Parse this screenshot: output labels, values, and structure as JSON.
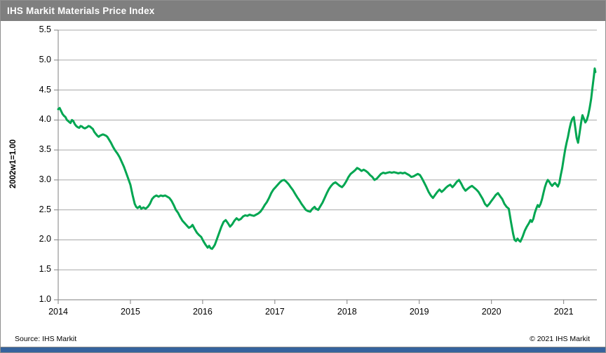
{
  "header": {
    "title": "IHS Markit Materials Price Index",
    "bar_color": "#7f7f7f"
  },
  "footer": {
    "source": "Source: IHS Markit",
    "copyright": "© 2021 IHS Markit",
    "bar_color": "#35639d"
  },
  "chart_data": {
    "type": "line",
    "title": "IHS Markit Materials Price Index",
    "ylabel": "2002w1=1.00",
    "xlabel": "",
    "ylim": [
      1.0,
      5.5
    ],
    "xlim": [
      2014.0,
      2021.46
    ],
    "y_ticks": [
      1.0,
      1.5,
      2.0,
      2.5,
      3.0,
      3.5,
      4.0,
      4.5,
      5.0,
      5.5
    ],
    "x_ticks": [
      2014,
      2015,
      2016,
      2017,
      2018,
      2019,
      2020,
      2021
    ],
    "grid": "horizontal",
    "legend_position": "none",
    "line_color": "#00a651",
    "grid_color": "#a8a8a8",
    "axis_color": "#7f7f7f",
    "series": [
      {
        "name": "Materials Price Index (2002w1=1.00)",
        "points": [
          [
            2014.0,
            4.18
          ],
          [
            2014.02,
            4.2
          ],
          [
            2014.04,
            4.15
          ],
          [
            2014.06,
            4.1
          ],
          [
            2014.08,
            4.07
          ],
          [
            2014.1,
            4.05
          ],
          [
            2014.12,
            4.0
          ],
          [
            2014.15,
            3.97
          ],
          [
            2014.17,
            3.95
          ],
          [
            2014.19,
            4.0
          ],
          [
            2014.21,
            3.98
          ],
          [
            2014.23,
            3.93
          ],
          [
            2014.25,
            3.9
          ],
          [
            2014.27,
            3.88
          ],
          [
            2014.29,
            3.87
          ],
          [
            2014.31,
            3.9
          ],
          [
            2014.33,
            3.89
          ],
          [
            2014.35,
            3.87
          ],
          [
            2014.37,
            3.86
          ],
          [
            2014.4,
            3.88
          ],
          [
            2014.42,
            3.9
          ],
          [
            2014.44,
            3.89
          ],
          [
            2014.46,
            3.87
          ],
          [
            2014.48,
            3.85
          ],
          [
            2014.5,
            3.8
          ],
          [
            2014.52,
            3.77
          ],
          [
            2014.54,
            3.74
          ],
          [
            2014.56,
            3.72
          ],
          [
            2014.58,
            3.74
          ],
          [
            2014.6,
            3.75
          ],
          [
            2014.62,
            3.76
          ],
          [
            2014.64,
            3.75
          ],
          [
            2014.66,
            3.74
          ],
          [
            2014.68,
            3.72
          ],
          [
            2014.7,
            3.68
          ],
          [
            2014.73,
            3.62
          ],
          [
            2014.76,
            3.55
          ],
          [
            2014.79,
            3.49
          ],
          [
            2014.82,
            3.44
          ],
          [
            2014.85,
            3.38
          ],
          [
            2014.88,
            3.3
          ],
          [
            2014.91,
            3.22
          ],
          [
            2014.94,
            3.12
          ],
          [
            2014.97,
            3.02
          ],
          [
            2015.0,
            2.92
          ],
          [
            2015.03,
            2.75
          ],
          [
            2015.06,
            2.6
          ],
          [
            2015.08,
            2.55
          ],
          [
            2015.1,
            2.53
          ],
          [
            2015.13,
            2.56
          ],
          [
            2015.15,
            2.52
          ],
          [
            2015.18,
            2.54
          ],
          [
            2015.21,
            2.52
          ],
          [
            2015.24,
            2.55
          ],
          [
            2015.27,
            2.6
          ],
          [
            2015.3,
            2.68
          ],
          [
            2015.33,
            2.72
          ],
          [
            2015.36,
            2.74
          ],
          [
            2015.39,
            2.72
          ],
          [
            2015.42,
            2.74
          ],
          [
            2015.45,
            2.73
          ],
          [
            2015.48,
            2.74
          ],
          [
            2015.51,
            2.72
          ],
          [
            2015.54,
            2.7
          ],
          [
            2015.57,
            2.65
          ],
          [
            2015.6,
            2.58
          ],
          [
            2015.63,
            2.5
          ],
          [
            2015.66,
            2.45
          ],
          [
            2015.69,
            2.38
          ],
          [
            2015.72,
            2.32
          ],
          [
            2015.75,
            2.28
          ],
          [
            2015.78,
            2.24
          ],
          [
            2015.81,
            2.2
          ],
          [
            2015.84,
            2.22
          ],
          [
            2015.86,
            2.25
          ],
          [
            2015.89,
            2.18
          ],
          [
            2015.92,
            2.12
          ],
          [
            2015.95,
            2.08
          ],
          [
            2015.98,
            2.05
          ],
          [
            2016.01,
            1.98
          ],
          [
            2016.04,
            1.92
          ],
          [
            2016.07,
            1.87
          ],
          [
            2016.09,
            1.9
          ],
          [
            2016.11,
            1.86
          ],
          [
            2016.13,
            1.85
          ],
          [
            2016.15,
            1.88
          ],
          [
            2016.17,
            1.92
          ],
          [
            2016.2,
            2.02
          ],
          [
            2016.23,
            2.12
          ],
          [
            2016.26,
            2.22
          ],
          [
            2016.29,
            2.3
          ],
          [
            2016.32,
            2.33
          ],
          [
            2016.35,
            2.28
          ],
          [
            2016.38,
            2.22
          ],
          [
            2016.41,
            2.26
          ],
          [
            2016.44,
            2.32
          ],
          [
            2016.47,
            2.36
          ],
          [
            2016.5,
            2.33
          ],
          [
            2016.53,
            2.35
          ],
          [
            2016.56,
            2.39
          ],
          [
            2016.59,
            2.41
          ],
          [
            2016.62,
            2.4
          ],
          [
            2016.65,
            2.42
          ],
          [
            2016.68,
            2.41
          ],
          [
            2016.71,
            2.4
          ],
          [
            2016.74,
            2.42
          ],
          [
            2016.77,
            2.44
          ],
          [
            2016.8,
            2.47
          ],
          [
            2016.83,
            2.52
          ],
          [
            2016.86,
            2.58
          ],
          [
            2016.89,
            2.63
          ],
          [
            2016.92,
            2.7
          ],
          [
            2016.95,
            2.78
          ],
          [
            2016.98,
            2.84
          ],
          [
            2017.01,
            2.88
          ],
          [
            2017.04,
            2.92
          ],
          [
            2017.07,
            2.96
          ],
          [
            2017.1,
            2.99
          ],
          [
            2017.13,
            3.0
          ],
          [
            2017.16,
            2.97
          ],
          [
            2017.19,
            2.93
          ],
          [
            2017.22,
            2.88
          ],
          [
            2017.25,
            2.83
          ],
          [
            2017.28,
            2.77
          ],
          [
            2017.31,
            2.71
          ],
          [
            2017.34,
            2.66
          ],
          [
            2017.37,
            2.6
          ],
          [
            2017.4,
            2.55
          ],
          [
            2017.43,
            2.5
          ],
          [
            2017.46,
            2.48
          ],
          [
            2017.49,
            2.47
          ],
          [
            2017.52,
            2.52
          ],
          [
            2017.55,
            2.55
          ],
          [
            2017.57,
            2.52
          ],
          [
            2017.6,
            2.5
          ],
          [
            2017.63,
            2.56
          ],
          [
            2017.66,
            2.62
          ],
          [
            2017.69,
            2.7
          ],
          [
            2017.72,
            2.78
          ],
          [
            2017.75,
            2.85
          ],
          [
            2017.78,
            2.9
          ],
          [
            2017.81,
            2.94
          ],
          [
            2017.84,
            2.96
          ],
          [
            2017.87,
            2.93
          ],
          [
            2017.9,
            2.9
          ],
          [
            2017.93,
            2.88
          ],
          [
            2017.96,
            2.92
          ],
          [
            2017.99,
            2.98
          ],
          [
            2018.02,
            3.05
          ],
          [
            2018.05,
            3.1
          ],
          [
            2018.08,
            3.13
          ],
          [
            2018.11,
            3.16
          ],
          [
            2018.14,
            3.2
          ],
          [
            2018.17,
            3.18
          ],
          [
            2018.2,
            3.15
          ],
          [
            2018.23,
            3.17
          ],
          [
            2018.26,
            3.15
          ],
          [
            2018.29,
            3.12
          ],
          [
            2018.32,
            3.08
          ],
          [
            2018.35,
            3.05
          ],
          [
            2018.38,
            3.0
          ],
          [
            2018.41,
            3.02
          ],
          [
            2018.44,
            3.06
          ],
          [
            2018.47,
            3.1
          ],
          [
            2018.5,
            3.12
          ],
          [
            2018.53,
            3.11
          ],
          [
            2018.56,
            3.12
          ],
          [
            2018.59,
            3.13
          ],
          [
            2018.62,
            3.12
          ],
          [
            2018.65,
            3.13
          ],
          [
            2018.68,
            3.12
          ],
          [
            2018.71,
            3.11
          ],
          [
            2018.74,
            3.12
          ],
          [
            2018.77,
            3.11
          ],
          [
            2018.8,
            3.12
          ],
          [
            2018.83,
            3.1
          ],
          [
            2018.86,
            3.08
          ],
          [
            2018.89,
            3.05
          ],
          [
            2018.92,
            3.06
          ],
          [
            2018.95,
            3.08
          ],
          [
            2018.98,
            3.1
          ],
          [
            2019.01,
            3.08
          ],
          [
            2019.04,
            3.02
          ],
          [
            2019.07,
            2.95
          ],
          [
            2019.1,
            2.88
          ],
          [
            2019.13,
            2.8
          ],
          [
            2019.16,
            2.74
          ],
          [
            2019.19,
            2.7
          ],
          [
            2019.22,
            2.75
          ],
          [
            2019.25,
            2.8
          ],
          [
            2019.28,
            2.84
          ],
          [
            2019.31,
            2.8
          ],
          [
            2019.34,
            2.83
          ],
          [
            2019.37,
            2.87
          ],
          [
            2019.4,
            2.9
          ],
          [
            2019.43,
            2.92
          ],
          [
            2019.46,
            2.88
          ],
          [
            2019.49,
            2.92
          ],
          [
            2019.52,
            2.97
          ],
          [
            2019.55,
            3.0
          ],
          [
            2019.58,
            2.94
          ],
          [
            2019.61,
            2.87
          ],
          [
            2019.64,
            2.82
          ],
          [
            2019.67,
            2.85
          ],
          [
            2019.7,
            2.88
          ],
          [
            2019.73,
            2.9
          ],
          [
            2019.76,
            2.87
          ],
          [
            2019.79,
            2.84
          ],
          [
            2019.82,
            2.8
          ],
          [
            2019.85,
            2.74
          ],
          [
            2019.88,
            2.68
          ],
          [
            2019.91,
            2.6
          ],
          [
            2019.94,
            2.56
          ],
          [
            2019.97,
            2.6
          ],
          [
            2020.0,
            2.65
          ],
          [
            2020.03,
            2.7
          ],
          [
            2020.06,
            2.75
          ],
          [
            2020.09,
            2.78
          ],
          [
            2020.12,
            2.73
          ],
          [
            2020.15,
            2.68
          ],
          [
            2020.18,
            2.6
          ],
          [
            2020.21,
            2.55
          ],
          [
            2020.24,
            2.52
          ],
          [
            2020.27,
            2.3
          ],
          [
            2020.3,
            2.1
          ],
          [
            2020.32,
            2.0
          ],
          [
            2020.34,
            1.98
          ],
          [
            2020.36,
            2.02
          ],
          [
            2020.38,
            1.99
          ],
          [
            2020.4,
            1.97
          ],
          [
            2020.43,
            2.05
          ],
          [
            2020.46,
            2.15
          ],
          [
            2020.49,
            2.22
          ],
          [
            2020.52,
            2.28
          ],
          [
            2020.54,
            2.33
          ],
          [
            2020.56,
            2.3
          ],
          [
            2020.58,
            2.35
          ],
          [
            2020.6,
            2.45
          ],
          [
            2020.62,
            2.52
          ],
          [
            2020.64,
            2.58
          ],
          [
            2020.66,
            2.55
          ],
          [
            2020.68,
            2.6
          ],
          [
            2020.7,
            2.68
          ],
          [
            2020.72,
            2.78
          ],
          [
            2020.74,
            2.88
          ],
          [
            2020.76,
            2.95
          ],
          [
            2020.78,
            3.0
          ],
          [
            2020.8,
            2.97
          ],
          [
            2020.82,
            2.93
          ],
          [
            2020.84,
            2.9
          ],
          [
            2020.86,
            2.93
          ],
          [
            2020.88,
            2.95
          ],
          [
            2020.9,
            2.92
          ],
          [
            2020.92,
            2.89
          ],
          [
            2020.94,
            2.95
          ],
          [
            2020.96,
            3.08
          ],
          [
            2020.98,
            3.2
          ],
          [
            2021.0,
            3.35
          ],
          [
            2021.02,
            3.5
          ],
          [
            2021.04,
            3.62
          ],
          [
            2021.06,
            3.72
          ],
          [
            2021.08,
            3.85
          ],
          [
            2021.1,
            3.95
          ],
          [
            2021.12,
            4.02
          ],
          [
            2021.14,
            4.05
          ],
          [
            2021.16,
            3.88
          ],
          [
            2021.18,
            3.7
          ],
          [
            2021.2,
            3.62
          ],
          [
            2021.22,
            3.78
          ],
          [
            2021.24,
            3.95
          ],
          [
            2021.26,
            4.08
          ],
          [
            2021.28,
            4.02
          ],
          [
            2021.3,
            3.96
          ],
          [
            2021.32,
            4.0
          ],
          [
            2021.34,
            4.08
          ],
          [
            2021.36,
            4.2
          ],
          [
            2021.38,
            4.35
          ],
          [
            2021.4,
            4.55
          ],
          [
            2021.42,
            4.75
          ],
          [
            2021.43,
            4.86
          ],
          [
            2021.44,
            4.8
          ]
        ]
      }
    ]
  }
}
